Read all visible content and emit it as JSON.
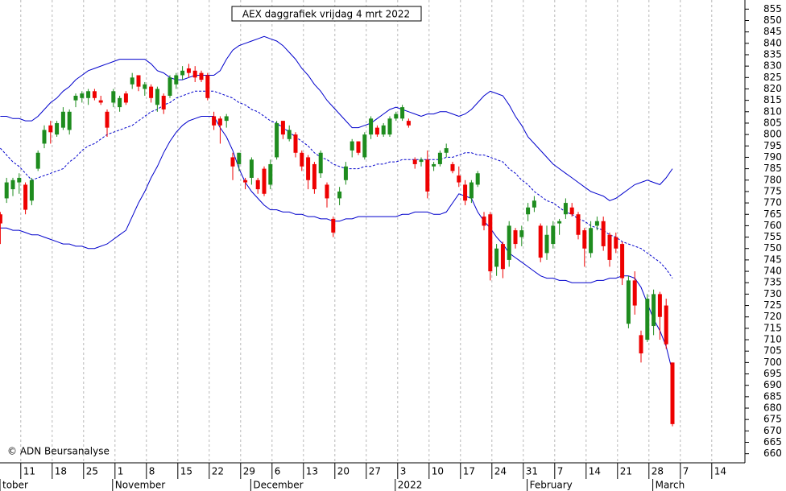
{
  "chart_data": {
    "type": "candlestick",
    "title": "AEX daggrafiek vrijdag 4 mrt 2022",
    "annotation": "© ADN Beursanalyse",
    "grid": true,
    "up_color": "#1e8c1e",
    "down_color": "#ee0000",
    "band_color": "#0000cc",
    "ylim": [
      656,
      859
    ],
    "yticks": [
      660,
      665,
      670,
      675,
      680,
      685,
      690,
      695,
      700,
      705,
      710,
      715,
      720,
      725,
      730,
      735,
      740,
      745,
      750,
      755,
      760,
      765,
      770,
      775,
      780,
      785,
      790,
      795,
      800,
      805,
      810,
      815,
      820,
      825,
      830,
      835,
      840,
      845,
      850,
      855
    ],
    "categories": [
      null,
      null,
      null,
      "11",
      null,
      null,
      null,
      null,
      "18",
      null,
      null,
      null,
      null,
      "25",
      null,
      null,
      null,
      null,
      "1",
      null,
      null,
      null,
      null,
      "8",
      null,
      null,
      null,
      null,
      "15",
      null,
      null,
      null,
      null,
      "22",
      null,
      null,
      null,
      null,
      "29",
      null,
      null,
      null,
      null,
      "6",
      null,
      null,
      null,
      null,
      "13",
      null,
      null,
      null,
      null,
      "20",
      null,
      null,
      null,
      null,
      "27",
      null,
      null,
      null,
      null,
      "3",
      null,
      null,
      null,
      null,
      "10",
      null,
      null,
      null,
      null,
      "17",
      null,
      null,
      null,
      null,
      "24",
      null,
      null,
      null,
      null,
      "31",
      null,
      null,
      null,
      null,
      "7",
      null,
      null,
      null,
      null,
      "14",
      null,
      null,
      null,
      null,
      "21",
      null,
      null,
      null,
      null,
      "28",
      null,
      null,
      null,
      null,
      "7",
      null,
      null,
      null,
      null,
      "14",
      null,
      null,
      null,
      null
    ],
    "months": [
      "tober",
      null,
      null,
      null,
      null,
      null,
      null,
      null,
      null,
      null,
      null,
      null,
      null,
      null,
      null,
      null,
      null,
      null,
      "November",
      null,
      null,
      null,
      null,
      null,
      null,
      null,
      null,
      null,
      null,
      null,
      null,
      null,
      null,
      null,
      null,
      null,
      null,
      null,
      null,
      null,
      "December",
      null,
      null,
      null,
      null,
      null,
      null,
      null,
      null,
      null,
      null,
      null,
      null,
      null,
      null,
      null,
      null,
      null,
      null,
      null,
      null,
      null,
      null,
      "2022",
      null,
      null,
      null,
      null,
      null,
      null,
      null,
      null,
      null,
      null,
      null,
      null,
      null,
      null,
      null,
      null,
      null,
      null,
      null,
      null,
      "February",
      null,
      null,
      null,
      null,
      null,
      null,
      null,
      null,
      null,
      null,
      null,
      null,
      null,
      null,
      null,
      null,
      null,
      null,
      null,
      "March",
      null,
      null,
      null,
      null,
      null,
      null,
      null,
      null,
      null,
      null,
      null,
      null,
      null
    ],
    "open": [
      765,
      772,
      776,
      779,
      778,
      771,
      785,
      796,
      804,
      800,
      803,
      802,
      815,
      816,
      816,
      819,
      815,
      810,
      814,
      812,
      818,
      822,
      826,
      820,
      821,
      813,
      817,
      817,
      822,
      826,
      829,
      828,
      827,
      826,
      808,
      807,
      806,
      790,
      787,
      780,
      781,
      780,
      785,
      778,
      790,
      806,
      798,
      800,
      792,
      790,
      787,
      783,
      778,
      763,
      772,
      780,
      793,
      797,
      790,
      800,
      803,
      800,
      800,
      807,
      807,
      806,
      789,
      788,
      789,
      786,
      787,
      792,
      787,
      782,
      778,
      772,
      778,
      764,
      765,
      742,
      752,
      745,
      758,
      755,
      765,
      768,
      760,
      748,
      752,
      761,
      765,
      768,
      765,
      758,
      748,
      760,
      762,
      756,
      755,
      752,
      717,
      736,
      712,
      710,
      716,
      730,
      725,
      700,
      null,
      null,
      null,
      null,
      null,
      null,
      null,
      null,
      null,
      null
    ],
    "high": [
      766,
      781,
      781,
      783,
      779,
      781,
      793,
      804,
      806,
      806,
      812,
      811,
      818,
      819,
      820,
      820,
      817,
      811,
      820,
      817,
      819,
      827,
      826,
      823,
      822,
      821,
      818,
      826,
      827,
      830,
      831,
      830,
      828,
      827,
      810,
      808,
      809,
      792,
      792,
      781,
      790,
      781,
      786,
      789,
      806,
      806,
      804,
      801,
      793,
      791,
      788,
      793,
      779,
      764,
      777,
      788,
      798,
      797,
      801,
      808,
      804,
      805,
      808,
      810,
      813,
      807,
      790,
      790,
      793,
      788,
      793,
      796,
      788,
      786,
      780,
      780,
      784,
      766,
      766,
      752,
      753,
      762,
      759,
      760,
      770,
      773,
      761,
      760,
      762,
      763,
      772,
      770,
      766,
      759,
      762,
      764,
      764,
      757,
      757,
      753,
      738,
      740,
      714,
      730,
      732,
      731,
      728,
      700,
      null,
      null,
      null,
      null,
      null,
      null,
      null,
      null,
      null,
      null
    ],
    "low": [
      752,
      770,
      773,
      774,
      765,
      769,
      784,
      794,
      796,
      799,
      802,
      800,
      812,
      814,
      813,
      815,
      813,
      799,
      812,
      810,
      813,
      820,
      819,
      817,
      814,
      810,
      809,
      816,
      820,
      824,
      825,
      823,
      823,
      815,
      802,
      796,
      803,
      780,
      784,
      776,
      778,
      774,
      773,
      776,
      789,
      798,
      797,
      790,
      784,
      776,
      774,
      781,
      768,
      755,
      769,
      778,
      790,
      791,
      789,
      798,
      799,
      799,
      799,
      806,
      806,
      803,
      785,
      786,
      772,
      784,
      786,
      790,
      783,
      777,
      769,
      770,
      777,
      758,
      736,
      738,
      737,
      742,
      750,
      751,
      762,
      766,
      744,
      745,
      750,
      756,
      763,
      764,
      754,
      742,
      746,
      758,
      749,
      742,
      748,
      734,
      715,
      721,
      700,
      709,
      712,
      710,
      706,
      672,
      null,
      null,
      null,
      null,
      null,
      null,
      null,
      null,
      null,
      null
    ],
    "close": [
      761,
      779,
      780,
      781,
      767,
      780,
      792,
      802,
      801,
      805,
      810,
      810,
      817,
      818,
      819,
      816,
      814,
      803,
      819,
      816,
      814,
      825,
      821,
      822,
      816,
      820,
      811,
      825,
      826,
      828,
      827,
      825,
      824,
      816,
      804,
      804,
      808,
      786,
      792,
      779,
      789,
      776,
      774,
      787,
      805,
      800,
      802,
      792,
      786,
      780,
      776,
      792,
      772,
      757,
      775,
      786,
      797,
      792,
      800,
      807,
      800,
      804,
      807,
      809,
      812,
      804,
      787,
      789,
      775,
      787,
      792,
      794,
      784,
      779,
      771,
      779,
      783,
      760,
      740,
      750,
      741,
      760,
      752,
      758,
      768,
      771,
      746,
      756,
      760,
      762,
      770,
      765,
      756,
      750,
      759,
      762,
      751,
      745,
      750,
      737,
      736,
      725,
      704,
      728,
      730,
      720,
      708,
      673,
      null,
      null,
      null,
      null,
      null,
      null,
      null,
      null,
      null,
      null
    ],
    "bands": {
      "upper": [
        808,
        808,
        807,
        807,
        806,
        806,
        808,
        811,
        814,
        816,
        819,
        821,
        824,
        826,
        828,
        829,
        830,
        831,
        832,
        833,
        833,
        833,
        833,
        833,
        831,
        828,
        827,
        825,
        824,
        824,
        825,
        826,
        826,
        826,
        826,
        828,
        833,
        837,
        839,
        840,
        841,
        842,
        843,
        842,
        841,
        839,
        836,
        833,
        829,
        826,
        822,
        819,
        815,
        812,
        809,
        806,
        803,
        803,
        804,
        805,
        807,
        809,
        811,
        812,
        811,
        810,
        809,
        808,
        809,
        809,
        810,
        810,
        809,
        808,
        809,
        811,
        814,
        817,
        819,
        818,
        817,
        813,
        808,
        804,
        799,
        796,
        793,
        790,
        787,
        785,
        783,
        781,
        779,
        777,
        775,
        774,
        773,
        771,
        772,
        774,
        776,
        778,
        779,
        780,
        779,
        778,
        781,
        785,
        null,
        null,
        null,
        null,
        null,
        null,
        null,
        null,
        null,
        null
      ],
      "middle": [
        794,
        791,
        788,
        786,
        783,
        780,
        781,
        782,
        783,
        784,
        785,
        788,
        790,
        793,
        795,
        796,
        798,
        800,
        801,
        802,
        803,
        804,
        806,
        808,
        810,
        811,
        813,
        814,
        816,
        817,
        818,
        819,
        819,
        819,
        819,
        818,
        817,
        816,
        814,
        813,
        811,
        810,
        808,
        806,
        805,
        803,
        801,
        799,
        797,
        795,
        792,
        790,
        789,
        787,
        786,
        785,
        785,
        785,
        786,
        786,
        787,
        787,
        788,
        788,
        789,
        789,
        789,
        789,
        789,
        789,
        789,
        790,
        790,
        791,
        792,
        792,
        791,
        791,
        790,
        789,
        788,
        785,
        783,
        780,
        778,
        775,
        773,
        771,
        770,
        768,
        766,
        765,
        763,
        762,
        760,
        759,
        758,
        756,
        755,
        753,
        752,
        751,
        750,
        748,
        746,
        744,
        741,
        737,
        null,
        null,
        null,
        null,
        null,
        null,
        null,
        null,
        null,
        null
      ],
      "lower": [
        759,
        759,
        758,
        758,
        757,
        756,
        756,
        755,
        754,
        753,
        752,
        752,
        751,
        751,
        750,
        750,
        751,
        752,
        754,
        756,
        758,
        764,
        770,
        775,
        781,
        786,
        792,
        797,
        801,
        804,
        806,
        807,
        808,
        808,
        808,
        803,
        799,
        793,
        785,
        779,
        775,
        772,
        769,
        767,
        767,
        766,
        766,
        765,
        765,
        764,
        764,
        763,
        763,
        762,
        762,
        763,
        763,
        764,
        764,
        764,
        764,
        764,
        764,
        764,
        765,
        765,
        766,
        766,
        766,
        765,
        765,
        766,
        770,
        774,
        773,
        772,
        766,
        762,
        759,
        755,
        752,
        748,
        746,
        744,
        742,
        740,
        738,
        737,
        737,
        736,
        736,
        735,
        735,
        735,
        735,
        736,
        736,
        737,
        737,
        738,
        738,
        737,
        733,
        726,
        719,
        714,
        707,
        696,
        null,
        null,
        null,
        null,
        null,
        null,
        null,
        null,
        null,
        null
      ]
    }
  }
}
